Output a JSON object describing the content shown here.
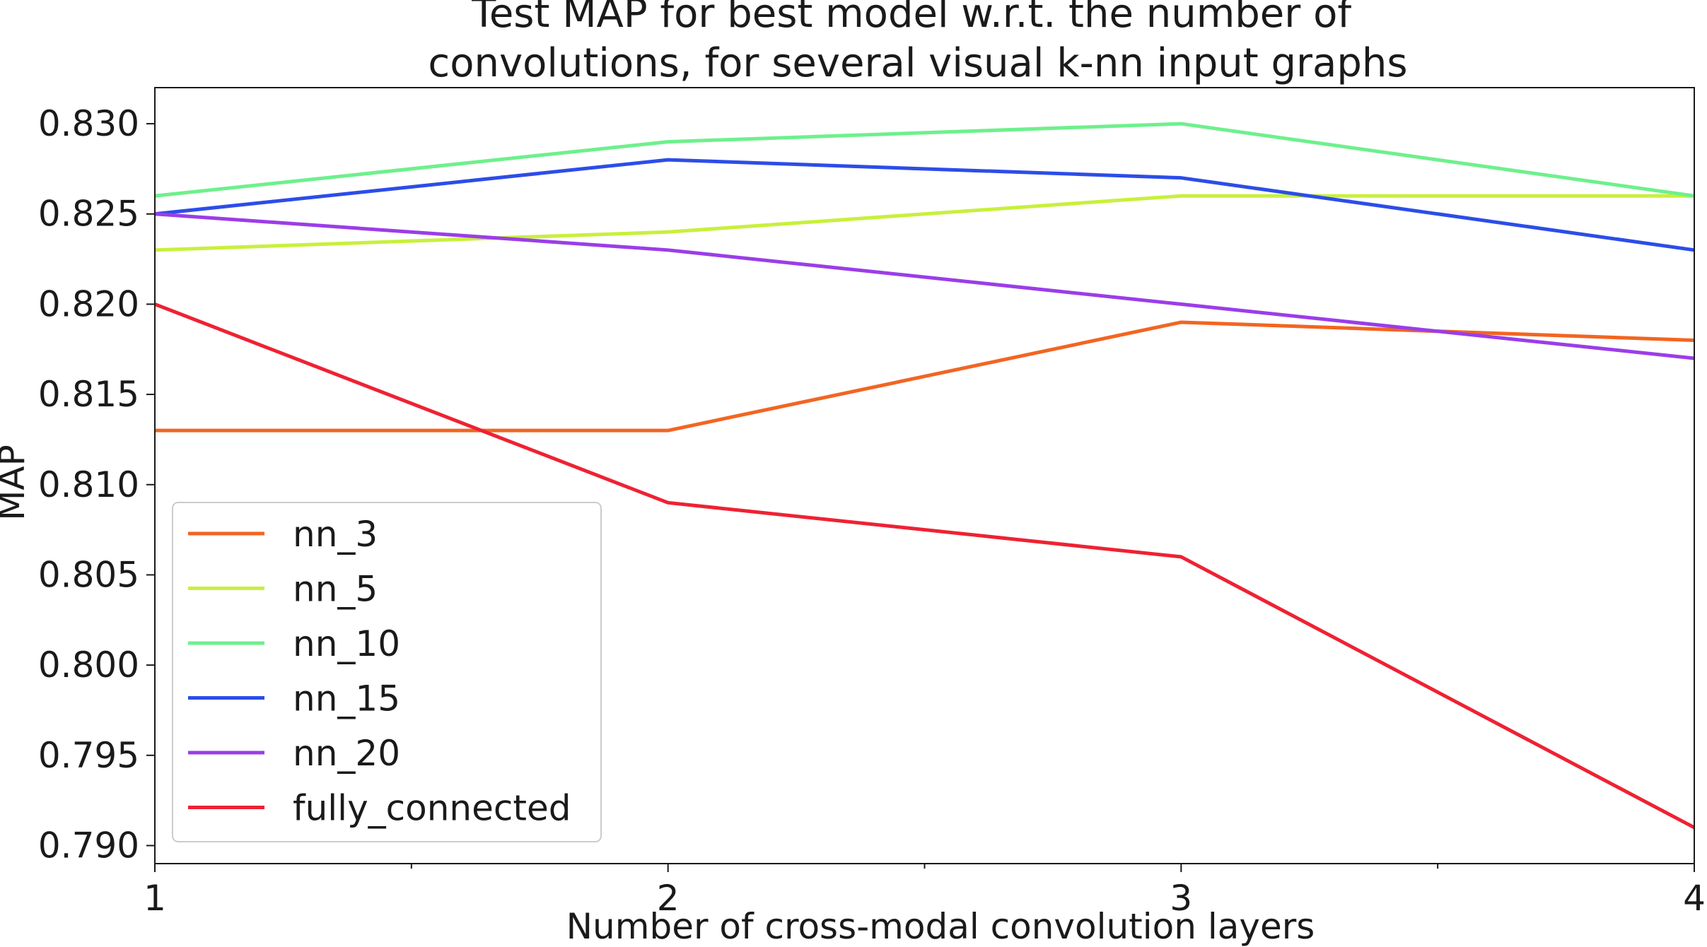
{
  "chart_data": {
    "type": "line",
    "title": "Test MAP for best model w.r.t. the number of\nconvolutions, for several visual k-nn input graphs",
    "title_lines": [
      "Test MAP for best model w.r.t. the number of",
      "convolutions, for several visual k-nn input graphs"
    ],
    "xlabel": "Number of cross-modal convolution layers",
    "ylabel": "MAP",
    "x": [
      1,
      2,
      3,
      4
    ],
    "xlim": [
      1,
      4
    ],
    "ylim": [
      0.789,
      0.832
    ],
    "x_ticks": [
      "1",
      "2",
      "3",
      "4"
    ],
    "y_ticks": [
      0.79,
      0.795,
      0.8,
      0.805,
      0.81,
      0.815,
      0.82,
      0.825,
      0.83
    ],
    "y_tick_labels": [
      "0.790",
      "0.795",
      "0.800",
      "0.805",
      "0.810",
      "0.815",
      "0.820",
      "0.825",
      "0.830"
    ],
    "grid": false,
    "legend_position": "lower-left",
    "series": [
      {
        "name": "nn_3",
        "color": "#f26522",
        "values": [
          0.813,
          0.813,
          0.819,
          0.818
        ]
      },
      {
        "name": "nn_5",
        "color": "#c8f03c",
        "values": [
          0.823,
          0.824,
          0.826,
          0.826
        ]
      },
      {
        "name": "nn_10",
        "color": "#6ef08c",
        "values": [
          0.826,
          0.829,
          0.83,
          0.826
        ]
      },
      {
        "name": "nn_15",
        "color": "#2c4de8",
        "values": [
          0.825,
          0.828,
          0.827,
          0.823
        ]
      },
      {
        "name": "nn_20",
        "color": "#9b3de8",
        "values": [
          0.825,
          0.823,
          0.82,
          0.817
        ]
      },
      {
        "name": "fully_connected",
        "color": "#ee2233",
        "values": [
          0.82,
          0.809,
          0.806,
          0.791
        ]
      }
    ]
  }
}
